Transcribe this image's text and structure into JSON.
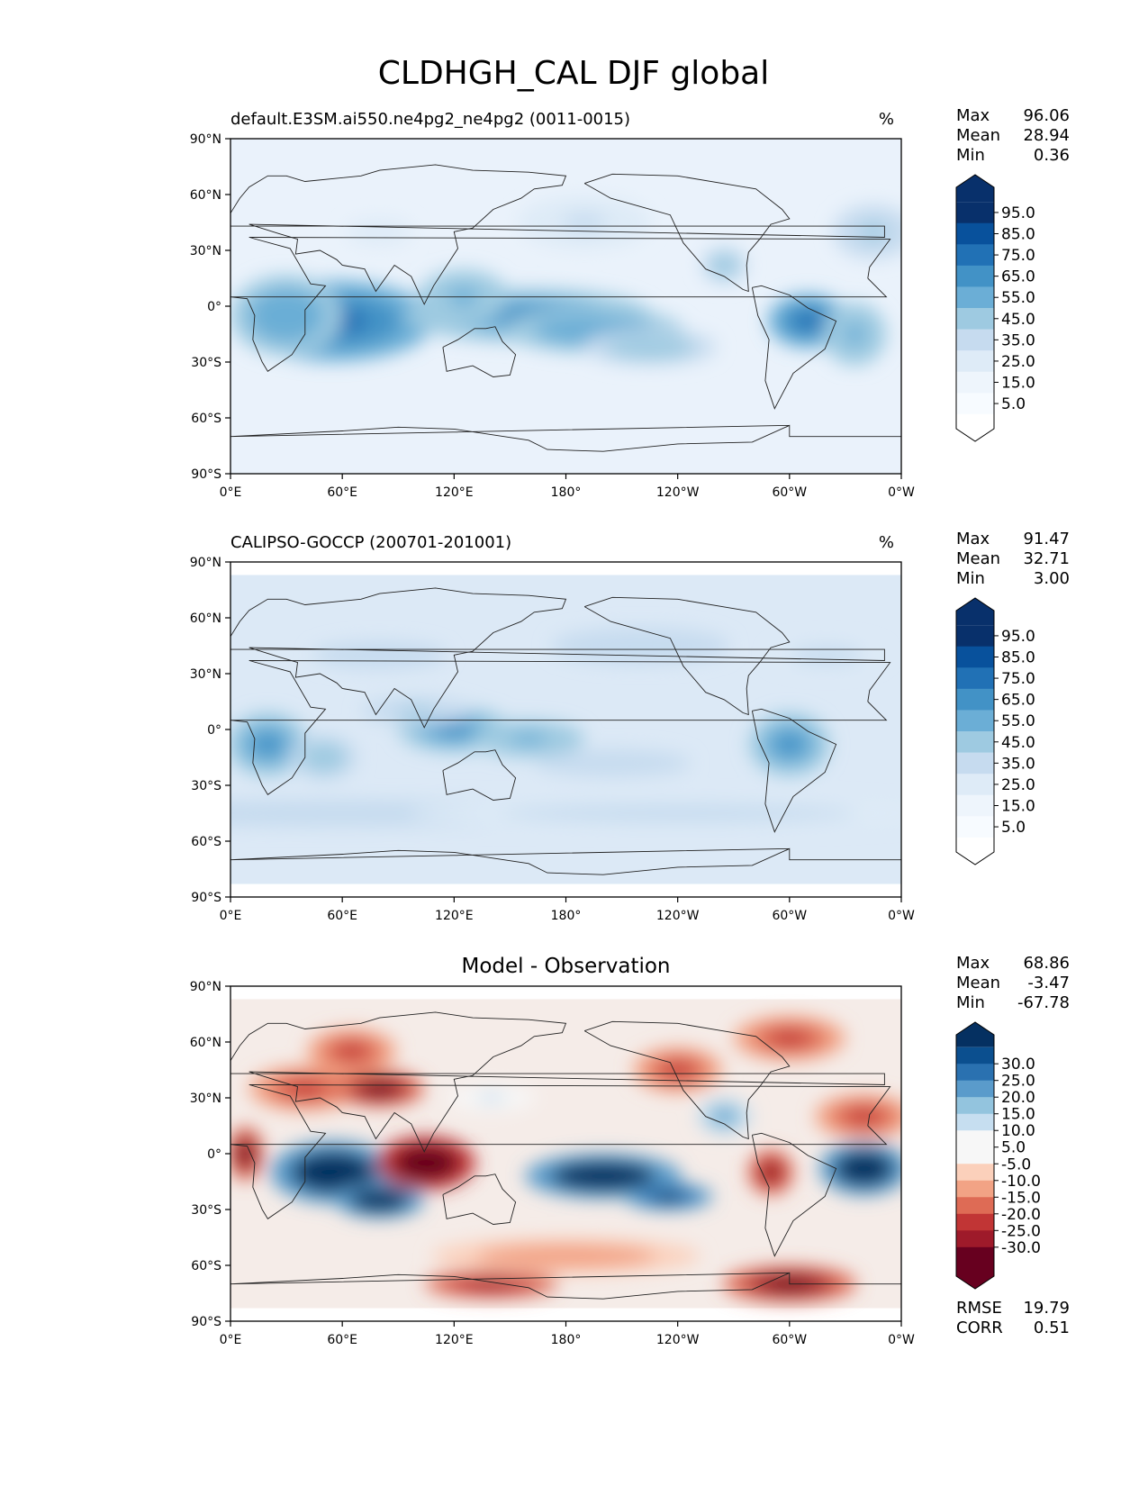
{
  "figure": {
    "title": "CLDHGH_CAL DJF global"
  },
  "chart_data": [
    {
      "type": "heatmap",
      "title": "default.E3SM.ai550.ne4pg2_ne4pg2 (0011-0015)",
      "units": "%",
      "xticks": [
        "0°E",
        "60°E",
        "120°E",
        "180°",
        "120°W",
        "60°W",
        "0°W"
      ],
      "yticks": [
        "90°N",
        "60°N",
        "30°N",
        "0°",
        "30°S",
        "60°S",
        "90°S"
      ],
      "xlim": [
        0,
        360
      ],
      "ylim": [
        -90,
        90
      ],
      "stats": [
        {
          "label": "Max",
          "value": "96.06"
        },
        {
          "label": "Mean",
          "value": "28.94"
        },
        {
          "label": "Min",
          "value": "0.36"
        }
      ],
      "colorbar": {
        "colormap": "Blues",
        "extend": "both",
        "labels": [
          "95.0",
          "85.0",
          "75.0",
          "65.0",
          "55.0",
          "45.0",
          "35.0",
          "25.0",
          "15.0",
          "5.0"
        ],
        "colors": [
          "#08306b",
          "#08519c",
          "#2171b5",
          "#4292c6",
          "#6baed6",
          "#9ecae1",
          "#c6dbef",
          "#deebf7",
          "#eef5fc",
          "#f7fbff"
        ],
        "over_color": "#08306b",
        "under_color": "#ffffff"
      },
      "background_color": "#eaf2fb",
      "features": [
        {
          "lon": 55,
          "lat": -8,
          "w": 45,
          "h": 18,
          "v": 85
        },
        {
          "lon": 30,
          "lat": -5,
          "w": 25,
          "h": 18,
          "v": 65
        },
        {
          "lon": 160,
          "lat": -5,
          "w": 55,
          "h": 12,
          "v": 70
        },
        {
          "lon": 195,
          "lat": -13,
          "w": 40,
          "h": 10,
          "v": 65
        },
        {
          "lon": 225,
          "lat": -22,
          "w": 30,
          "h": 8,
          "v": 55
        },
        {
          "lon": 125,
          "lat": 5,
          "w": 20,
          "h": 12,
          "v": 60
        },
        {
          "lon": 310,
          "lat": -8,
          "w": 18,
          "h": 12,
          "v": 85
        },
        {
          "lon": 335,
          "lat": -15,
          "w": 14,
          "h": 14,
          "v": 60
        },
        {
          "lon": 265,
          "lat": 22,
          "w": 10,
          "h": 8,
          "v": 55
        },
        {
          "lon": 345,
          "lat": 40,
          "w": 18,
          "h": 12,
          "v": 50
        },
        {
          "lon": 190,
          "lat": 45,
          "w": 30,
          "h": 12,
          "v": 38
        },
        {
          "lon": 80,
          "lat": 40,
          "w": 15,
          "h": 6,
          "v": 35
        }
      ]
    },
    {
      "type": "heatmap",
      "title": "CALIPSO-GOCCP (200701-201001)",
      "units": "%",
      "xticks": [
        "0°E",
        "60°E",
        "120°E",
        "180°",
        "120°W",
        "60°W",
        "0°W"
      ],
      "yticks": [
        "90°N",
        "60°N",
        "30°N",
        "0°",
        "30°S",
        "60°S",
        "90°S"
      ],
      "xlim": [
        0,
        360
      ],
      "ylim": [
        -90,
        90
      ],
      "stats": [
        {
          "label": "Max",
          "value": "91.47"
        },
        {
          "label": "Mean",
          "value": "32.71"
        },
        {
          "label": "Min",
          "value": "3.00"
        }
      ],
      "colorbar": {
        "colormap": "Blues",
        "extend": "both",
        "labels": [
          "95.0",
          "85.0",
          "75.0",
          "65.0",
          "55.0",
          "45.0",
          "35.0",
          "25.0",
          "15.0",
          "5.0"
        ],
        "colors": [
          "#08306b",
          "#08519c",
          "#2171b5",
          "#4292c6",
          "#6baed6",
          "#9ecae1",
          "#c6dbef",
          "#deebf7",
          "#eef5fc",
          "#f7fbff"
        ],
        "over_color": "#08306b",
        "under_color": "#ffffff"
      },
      "background_color": "#dce9f6",
      "features": [
        {
          "lon": 20,
          "lat": -8,
          "w": 18,
          "h": 14,
          "v": 70
        },
        {
          "lon": 50,
          "lat": -15,
          "w": 15,
          "h": 10,
          "v": 55
        },
        {
          "lon": 120,
          "lat": 0,
          "w": 25,
          "h": 10,
          "v": 70
        },
        {
          "lon": 160,
          "lat": -5,
          "w": 25,
          "h": 8,
          "v": 60
        },
        {
          "lon": 205,
          "lat": -18,
          "w": 35,
          "h": 6,
          "v": 45
        },
        {
          "lon": 300,
          "lat": -8,
          "w": 18,
          "h": 14,
          "v": 75
        },
        {
          "lon": 100,
          "lat": 10,
          "w": 25,
          "h": 6,
          "v": 50
        },
        {
          "lon": 60,
          "lat": -45,
          "w": 120,
          "h": 6,
          "v": 45
        },
        {
          "lon": 240,
          "lat": -45,
          "w": 120,
          "h": 6,
          "v": 42
        },
        {
          "lon": 80,
          "lat": 40,
          "w": 30,
          "h": 6,
          "v": 45
        },
        {
          "lon": 220,
          "lat": 45,
          "w": 40,
          "h": 8,
          "v": 45
        },
        {
          "lon": 320,
          "lat": 40,
          "w": 25,
          "h": 6,
          "v": 40
        }
      ]
    },
    {
      "type": "heatmap",
      "title": "Model - Observation",
      "units": "",
      "xticks": [
        "0°E",
        "60°E",
        "120°E",
        "180°",
        "120°W",
        "60°W",
        "0°W"
      ],
      "yticks": [
        "90°N",
        "60°N",
        "30°N",
        "0°",
        "30°S",
        "60°S",
        "90°S"
      ],
      "xlim": [
        0,
        360
      ],
      "ylim": [
        -90,
        90
      ],
      "stats": [
        {
          "label": "Max",
          "value": "68.86"
        },
        {
          "label": "Mean",
          "value": "-3.47"
        },
        {
          "label": "Min",
          "value": "-67.78"
        }
      ],
      "metrics": [
        {
          "label": "RMSE",
          "value": "19.79"
        },
        {
          "label": "CORR",
          "value": "0.51"
        }
      ],
      "colorbar": {
        "colormap": "RdBu",
        "extend": "both",
        "labels": [
          "30.0",
          "25.0",
          "20.0",
          "15.0",
          "10.0",
          "5.0",
          "-5.0",
          "-10.0",
          "-15.0",
          "-20.0",
          "-25.0",
          "-30.0"
        ],
        "colors": [
          "#0b4f8f",
          "#2a71b0",
          "#5a9bcb",
          "#93c4de",
          "#c6def0",
          "#f7f7f7",
          "#f7f7f7",
          "#fbd0bb",
          "#f2a385",
          "#de6b55",
          "#c13535",
          "#9e1a2a",
          "#67001f"
        ],
        "over_color": "#053061",
        "under_color": "#67001f"
      },
      "background_color": "#f5ece8",
      "features": [
        {
          "lon": 55,
          "lat": -10,
          "w": 28,
          "h": 14,
          "v": 40
        },
        {
          "lon": 80,
          "lat": -25,
          "w": 20,
          "h": 8,
          "v": 40
        },
        {
          "lon": 105,
          "lat": -5,
          "w": 22,
          "h": 12,
          "v": -40
        },
        {
          "lon": 8,
          "lat": 0,
          "w": 8,
          "h": 12,
          "v": -35
        },
        {
          "lon": 200,
          "lat": -12,
          "w": 35,
          "h": 10,
          "v": 40
        },
        {
          "lon": 235,
          "lat": -23,
          "w": 20,
          "h": 6,
          "v": 38
        },
        {
          "lon": 340,
          "lat": -8,
          "w": 20,
          "h": 12,
          "v": 40
        },
        {
          "lon": 290,
          "lat": -10,
          "w": 10,
          "h": 10,
          "v": -30
        },
        {
          "lon": 265,
          "lat": 20,
          "w": 12,
          "h": 8,
          "v": 20
        },
        {
          "lon": 40,
          "lat": 35,
          "w": 25,
          "h": 10,
          "v": -25
        },
        {
          "lon": 80,
          "lat": 35,
          "w": 20,
          "h": 8,
          "v": -35
        },
        {
          "lon": 65,
          "lat": 55,
          "w": 20,
          "h": 10,
          "v": -25
        },
        {
          "lon": 140,
          "lat": -70,
          "w": 30,
          "h": 6,
          "v": -28
        },
        {
          "lon": 300,
          "lat": -70,
          "w": 30,
          "h": 8,
          "v": -32
        },
        {
          "lon": 240,
          "lat": 45,
          "w": 20,
          "h": 10,
          "v": -22
        },
        {
          "lon": 300,
          "lat": 62,
          "w": 25,
          "h": 10,
          "v": -25
        },
        {
          "lon": 140,
          "lat": 30,
          "w": 20,
          "h": 6,
          "v": 10
        },
        {
          "lon": 180,
          "lat": -55,
          "w": 60,
          "h": 8,
          "v": -15
        },
        {
          "lon": 340,
          "lat": 20,
          "w": 22,
          "h": 10,
          "v": -25
        }
      ]
    }
  ]
}
